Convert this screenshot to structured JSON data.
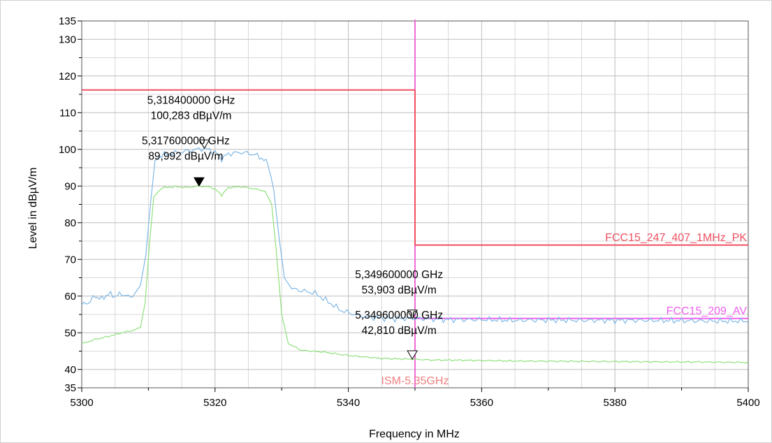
{
  "chart_data": {
    "type": "line",
    "xlabel": "Frequency in MHz",
    "ylabel": "Level in dBµV/m",
    "xlim": [
      5300,
      5400
    ],
    "ylim": [
      35,
      135
    ],
    "x_ticks": [
      5300,
      5320,
      5340,
      5360,
      5380,
      5400
    ],
    "y_ticks": [
      35,
      40,
      50,
      60,
      70,
      80,
      90,
      100,
      110,
      120,
      130,
      135
    ],
    "grid": true,
    "series": [
      {
        "color": "#7fb8e6",
        "points": [
          [
            5300,
            57.6
          ],
          [
            5301,
            58.2
          ],
          [
            5302,
            60.0
          ],
          [
            5303,
            59.2
          ],
          [
            5304,
            60.6
          ],
          [
            5305,
            60.0
          ],
          [
            5306,
            60.6
          ],
          [
            5307,
            59.8
          ],
          [
            5308,
            60.4
          ],
          [
            5308.8,
            63.0
          ],
          [
            5309.6,
            71.0
          ],
          [
            5310.3,
            85.0
          ],
          [
            5311,
            97.0
          ],
          [
            5312,
            98.5
          ],
          [
            5314,
            99.0
          ],
          [
            5316,
            99.6
          ],
          [
            5318.4,
            100.3
          ],
          [
            5320,
            99.2
          ],
          [
            5321,
            97.5
          ],
          [
            5322,
            98.8
          ],
          [
            5324,
            99.2
          ],
          [
            5326,
            98.6
          ],
          [
            5327,
            97.6
          ],
          [
            5328,
            96.0
          ],
          [
            5328.8,
            89.0
          ],
          [
            5329.6,
            76.0
          ],
          [
            5330.4,
            65.0
          ],
          [
            5331.5,
            62.0
          ],
          [
            5333,
            61.5
          ],
          [
            5335,
            60.8
          ],
          [
            5337,
            58.4
          ],
          [
            5339,
            56.0
          ],
          [
            5341,
            55.0
          ],
          [
            5343,
            54.2
          ],
          [
            5345,
            54.0
          ],
          [
            5347,
            53.8
          ],
          [
            5349.6,
            53.9
          ],
          [
            5352,
            53.8
          ],
          [
            5355,
            53.6
          ],
          [
            5360,
            53.6
          ],
          [
            5365,
            53.4
          ],
          [
            5370,
            53.5
          ],
          [
            5375,
            53.4
          ],
          [
            5380,
            53.4
          ],
          [
            5385,
            53.4
          ],
          [
            5390,
            53.3
          ],
          [
            5395,
            53.2
          ],
          [
            5400,
            53.2
          ]
        ]
      },
      {
        "color": "#8fe07a",
        "points": [
          [
            5300,
            47.0
          ],
          [
            5302,
            48.2
          ],
          [
            5304,
            49.0
          ],
          [
            5306,
            50.0
          ],
          [
            5308,
            50.8
          ],
          [
            5308.8,
            51.5
          ],
          [
            5309.5,
            58.0
          ],
          [
            5310.2,
            75.0
          ],
          [
            5310.8,
            87.0
          ],
          [
            5312,
            89.5
          ],
          [
            5314,
            89.8
          ],
          [
            5316,
            89.6
          ],
          [
            5317.6,
            90.0
          ],
          [
            5319,
            89.8
          ],
          [
            5320,
            89.2
          ],
          [
            5321,
            87.5
          ],
          [
            5322,
            89.6
          ],
          [
            5324,
            89.8
          ],
          [
            5326,
            89.2
          ],
          [
            5327.5,
            88.6
          ],
          [
            5328.5,
            85.0
          ],
          [
            5329.2,
            72.0
          ],
          [
            5330,
            55.0
          ],
          [
            5331,
            47.0
          ],
          [
            5333,
            45.2
          ],
          [
            5336,
            44.8
          ],
          [
            5340,
            43.8
          ],
          [
            5345,
            43.0
          ],
          [
            5349.6,
            42.8
          ],
          [
            5352,
            42.6
          ],
          [
            5358,
            42.5
          ],
          [
            5365,
            42.3
          ],
          [
            5375,
            42.2
          ],
          [
            5385,
            42.1
          ],
          [
            5395,
            42.0
          ],
          [
            5400,
            41.9
          ]
        ]
      }
    ],
    "limit_lines": [
      {
        "name": "FCC15_247_407_1MHz_PK",
        "color": "#f05060",
        "segments": [
          {
            "x": [
              5300,
              5350
            ],
            "y": 116.2
          },
          {
            "x": [
              5350,
              5400
            ],
            "y": 73.9
          }
        ],
        "vertical": {
          "x": 5350,
          "y": [
            73.9,
            116.2
          ]
        }
      },
      {
        "name": "FCC15_209_AV",
        "color": "#f060f0",
        "segments": [
          {
            "x": [
              5350,
              5400
            ],
            "y": 53.9
          }
        ]
      }
    ],
    "vertical_line": {
      "label": "ISM-5.35GHz",
      "x": 5350,
      "color": "#f06ad8",
      "label_color": "#f08080"
    },
    "markers": [
      {
        "freq": "5,318400000 GHz",
        "level": "100,283 dBµV/m",
        "x": 5318.4,
        "y": 100.283,
        "filled": false
      },
      {
        "freq": "5,317600000 GHz",
        "level": "89,992 dBµV/m",
        "x": 5317.6,
        "y": 89.992,
        "filled": true
      },
      {
        "freq": "5,349600000 GHz",
        "level": "53,903 dBµV/m",
        "x": 5349.6,
        "y": 53.903,
        "filled": false
      },
      {
        "freq": "5,349600000 GHz",
        "level": "42,810 dBµV/m",
        "x": 5349.6,
        "y": 42.81,
        "filled": false
      }
    ]
  }
}
